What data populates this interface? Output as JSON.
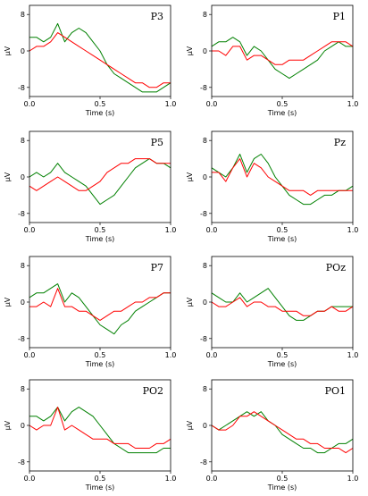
{
  "chart_data": [
    {
      "type": "line",
      "title": "P3",
      "xlabel": "Time (s)",
      "ylabel": "µV",
      "xlim": [
        0,
        1
      ],
      "ylim": [
        -10,
        10
      ],
      "xticks": [
        "0.0",
        "0.5",
        "1.0"
      ],
      "yticks": [
        "8",
        "0",
        "-8"
      ],
      "series": [
        {
          "color": "#008000",
          "x": [
            0,
            0.05,
            0.1,
            0.15,
            0.2,
            0.25,
            0.3,
            0.35,
            0.4,
            0.45,
            0.5,
            0.55,
            0.6,
            0.65,
            0.7,
            0.75,
            0.8,
            0.85,
            0.9,
            0.95,
            1.0
          ],
          "values": [
            3,
            3,
            2,
            3,
            6,
            2,
            4,
            5,
            4,
            2,
            0,
            -3,
            -5,
            -6,
            -7,
            -8,
            -9,
            -9,
            -9,
            -8,
            -7
          ]
        },
        {
          "color": "#ff0000",
          "x": [
            0,
            0.05,
            0.1,
            0.15,
            0.2,
            0.25,
            0.3,
            0.35,
            0.4,
            0.45,
            0.5,
            0.55,
            0.6,
            0.65,
            0.7,
            0.75,
            0.8,
            0.85,
            0.9,
            0.95,
            1.0
          ],
          "values": [
            0,
            1,
            1,
            2,
            4,
            3,
            2,
            1,
            0,
            -1,
            -2,
            -3,
            -4,
            -5,
            -6,
            -7,
            -7,
            -8,
            -8,
            -7,
            -7
          ]
        }
      ]
    },
    {
      "type": "line",
      "title": "P1",
      "xlabel": "Time (s)",
      "ylabel": "µV",
      "xlim": [
        0,
        1
      ],
      "ylim": [
        -10,
        10
      ],
      "xticks": [
        "0.0",
        "0.5",
        "1.0"
      ],
      "yticks": [
        "8",
        "0",
        "-8"
      ],
      "series": [
        {
          "color": "#008000",
          "x": [
            0,
            0.05,
            0.1,
            0.15,
            0.2,
            0.25,
            0.3,
            0.35,
            0.4,
            0.45,
            0.5,
            0.55,
            0.6,
            0.65,
            0.7,
            0.75,
            0.8,
            0.85,
            0.9,
            0.95,
            1.0
          ],
          "values": [
            1,
            2,
            2,
            3,
            2,
            -1,
            1,
            0,
            -2,
            -4,
            -5,
            -6,
            -5,
            -4,
            -3,
            -2,
            0,
            1,
            2,
            1,
            1
          ]
        },
        {
          "color": "#ff0000",
          "x": [
            0,
            0.05,
            0.1,
            0.15,
            0.2,
            0.25,
            0.3,
            0.35,
            0.4,
            0.45,
            0.5,
            0.55,
            0.6,
            0.65,
            0.7,
            0.75,
            0.8,
            0.85,
            0.9,
            0.95,
            1.0
          ],
          "values": [
            0,
            0,
            -1,
            1,
            1,
            -2,
            -1,
            -1,
            -2,
            -3,
            -3,
            -2,
            -2,
            -2,
            -1,
            0,
            1,
            2,
            2,
            2,
            1
          ]
        }
      ]
    },
    {
      "type": "line",
      "title": "P5",
      "xlabel": "Time (s)",
      "ylabel": "µV",
      "xlim": [
        0,
        1
      ],
      "ylim": [
        -10,
        10
      ],
      "xticks": [
        "0.0",
        "0.5",
        "1.0"
      ],
      "yticks": [
        "8",
        "0",
        "-8"
      ],
      "series": [
        {
          "color": "#008000",
          "x": [
            0,
            0.05,
            0.1,
            0.15,
            0.2,
            0.25,
            0.3,
            0.35,
            0.4,
            0.45,
            0.5,
            0.55,
            0.6,
            0.65,
            0.7,
            0.75,
            0.8,
            0.85,
            0.9,
            0.95,
            1.0
          ],
          "values": [
            0,
            1,
            0,
            1,
            3,
            1,
            0,
            -1,
            -2,
            -4,
            -6,
            -5,
            -4,
            -2,
            0,
            2,
            3,
            4,
            3,
            3,
            2
          ]
        },
        {
          "color": "#ff0000",
          "x": [
            0,
            0.05,
            0.1,
            0.15,
            0.2,
            0.25,
            0.3,
            0.35,
            0.4,
            0.45,
            0.5,
            0.55,
            0.6,
            0.65,
            0.7,
            0.75,
            0.8,
            0.85,
            0.9,
            0.95,
            1.0
          ],
          "values": [
            -2,
            -3,
            -2,
            -1,
            0,
            -1,
            -2,
            -3,
            -3,
            -2,
            -1,
            1,
            2,
            3,
            3,
            4,
            4,
            4,
            3,
            3,
            3
          ]
        }
      ]
    },
    {
      "type": "line",
      "title": "Pz",
      "xlabel": "Time (s)",
      "ylabel": "µV",
      "xlim": [
        0,
        1
      ],
      "ylim": [
        -10,
        10
      ],
      "xticks": [
        "0.0",
        "0.5",
        "1.0"
      ],
      "yticks": [
        "8",
        "0",
        "-8"
      ],
      "series": [
        {
          "color": "#008000",
          "x": [
            0,
            0.05,
            0.1,
            0.15,
            0.2,
            0.25,
            0.3,
            0.35,
            0.4,
            0.45,
            0.5,
            0.55,
            0.6,
            0.65,
            0.7,
            0.75,
            0.8,
            0.85,
            0.9,
            0.95,
            1.0
          ],
          "values": [
            2,
            1,
            0,
            2,
            5,
            1,
            4,
            5,
            3,
            0,
            -2,
            -4,
            -5,
            -6,
            -6,
            -5,
            -4,
            -4,
            -3,
            -3,
            -2
          ]
        },
        {
          "color": "#ff0000",
          "x": [
            0,
            0.05,
            0.1,
            0.15,
            0.2,
            0.25,
            0.3,
            0.35,
            0.4,
            0.45,
            0.5,
            0.55,
            0.6,
            0.65,
            0.7,
            0.75,
            0.8,
            0.85,
            0.9,
            0.95,
            1.0
          ],
          "values": [
            1,
            1,
            -1,
            2,
            4,
            0,
            3,
            2,
            0,
            -1,
            -2,
            -3,
            -3,
            -3,
            -4,
            -3,
            -3,
            -3,
            -3,
            -3,
            -3
          ]
        }
      ]
    },
    {
      "type": "line",
      "title": "P7",
      "xlabel": "Time (s)",
      "ylabel": "µV",
      "xlim": [
        0,
        1
      ],
      "ylim": [
        -10,
        10
      ],
      "xticks": [
        "0.0",
        "0.5",
        "1.0"
      ],
      "yticks": [
        "8",
        "0",
        "-8"
      ],
      "series": [
        {
          "color": "#008000",
          "x": [
            0,
            0.05,
            0.1,
            0.15,
            0.2,
            0.25,
            0.3,
            0.35,
            0.4,
            0.45,
            0.5,
            0.55,
            0.6,
            0.65,
            0.7,
            0.75,
            0.8,
            0.85,
            0.9,
            0.95,
            1.0
          ],
          "values": [
            1,
            2,
            2,
            3,
            4,
            0,
            2,
            1,
            -1,
            -3,
            -5,
            -6,
            -7,
            -5,
            -4,
            -2,
            -1,
            0,
            1,
            2,
            2
          ]
        },
        {
          "color": "#ff0000",
          "x": [
            0,
            0.05,
            0.1,
            0.15,
            0.2,
            0.25,
            0.3,
            0.35,
            0.4,
            0.45,
            0.5,
            0.55,
            0.6,
            0.65,
            0.7,
            0.75,
            0.8,
            0.85,
            0.9,
            0.95,
            1.0
          ],
          "values": [
            -1,
            -1,
            0,
            -1,
            3,
            -1,
            -1,
            -2,
            -2,
            -3,
            -4,
            -3,
            -2,
            -2,
            -1,
            0,
            0,
            1,
            1,
            2,
            2
          ]
        }
      ]
    },
    {
      "type": "line",
      "title": "POz",
      "xlabel": "Time (s)",
      "ylabel": "µV",
      "xlim": [
        0,
        1
      ],
      "ylim": [
        -10,
        10
      ],
      "xticks": [
        "0.0",
        "0.5",
        "1.0"
      ],
      "yticks": [
        "8",
        "0",
        "-8"
      ],
      "series": [
        {
          "color": "#008000",
          "x": [
            0,
            0.05,
            0.1,
            0.15,
            0.2,
            0.25,
            0.3,
            0.35,
            0.4,
            0.45,
            0.5,
            0.55,
            0.6,
            0.65,
            0.7,
            0.75,
            0.8,
            0.85,
            0.9,
            0.95,
            1.0
          ],
          "values": [
            2,
            1,
            0,
            0,
            2,
            0,
            1,
            2,
            3,
            1,
            -1,
            -3,
            -4,
            -4,
            -3,
            -2,
            -2,
            -1,
            -1,
            -1,
            -1
          ]
        },
        {
          "color": "#ff0000",
          "x": [
            0,
            0.05,
            0.1,
            0.15,
            0.2,
            0.25,
            0.3,
            0.35,
            0.4,
            0.45,
            0.5,
            0.55,
            0.6,
            0.65,
            0.7,
            0.75,
            0.8,
            0.85,
            0.9,
            0.95,
            1.0
          ],
          "values": [
            0,
            -1,
            -1,
            0,
            1,
            -1,
            0,
            0,
            -1,
            -1,
            -2,
            -2,
            -2,
            -3,
            -3,
            -2,
            -2,
            -1,
            -2,
            -2,
            -1
          ]
        }
      ]
    },
    {
      "type": "line",
      "title": "PO2",
      "xlabel": "Time (s)",
      "ylabel": "µV",
      "xlim": [
        0,
        1
      ],
      "ylim": [
        -10,
        10
      ],
      "xticks": [
        "0.0",
        "0.5",
        "1.0"
      ],
      "yticks": [
        "8",
        "0",
        "-8"
      ],
      "series": [
        {
          "color": "#008000",
          "x": [
            0,
            0.05,
            0.1,
            0.15,
            0.2,
            0.25,
            0.3,
            0.35,
            0.4,
            0.45,
            0.5,
            0.55,
            0.6,
            0.65,
            0.7,
            0.75,
            0.8,
            0.85,
            0.9,
            0.95,
            1.0
          ],
          "values": [
            2,
            2,
            1,
            2,
            4,
            1,
            3,
            4,
            3,
            2,
            0,
            -2,
            -4,
            -5,
            -6,
            -6,
            -6,
            -6,
            -6,
            -5,
            -5
          ]
        },
        {
          "color": "#ff0000",
          "x": [
            0,
            0.05,
            0.1,
            0.15,
            0.2,
            0.25,
            0.3,
            0.35,
            0.4,
            0.45,
            0.5,
            0.55,
            0.6,
            0.65,
            0.7,
            0.75,
            0.8,
            0.85,
            0.9,
            0.95,
            1.0
          ],
          "values": [
            0,
            -1,
            0,
            0,
            4,
            -1,
            0,
            -1,
            -2,
            -3,
            -3,
            -3,
            -4,
            -4,
            -4,
            -5,
            -5,
            -5,
            -4,
            -4,
            -3
          ]
        }
      ]
    },
    {
      "type": "line",
      "title": "PO1",
      "xlabel": "Time (s)",
      "ylabel": "µV",
      "xlim": [
        0,
        1
      ],
      "ylim": [
        -10,
        10
      ],
      "xticks": [
        "0.0",
        "0.5",
        "1.0"
      ],
      "yticks": [
        "8",
        "0",
        "-8"
      ],
      "series": [
        {
          "color": "#008000",
          "x": [
            0,
            0.05,
            0.1,
            0.15,
            0.2,
            0.25,
            0.3,
            0.35,
            0.4,
            0.45,
            0.5,
            0.55,
            0.6,
            0.65,
            0.7,
            0.75,
            0.8,
            0.85,
            0.9,
            0.95,
            1.0
          ],
          "values": [
            0,
            -1,
            0,
            1,
            2,
            3,
            2,
            3,
            1,
            0,
            -2,
            -3,
            -4,
            -5,
            -5,
            -6,
            -6,
            -5,
            -4,
            -4,
            -3
          ]
        },
        {
          "color": "#ff0000",
          "x": [
            0,
            0.05,
            0.1,
            0.15,
            0.2,
            0.25,
            0.3,
            0.35,
            0.4,
            0.45,
            0.5,
            0.55,
            0.6,
            0.65,
            0.7,
            0.75,
            0.8,
            0.85,
            0.9,
            0.95,
            1.0
          ],
          "values": [
            0,
            -1,
            -1,
            0,
            2,
            2,
            3,
            2,
            1,
            0,
            -1,
            -2,
            -3,
            -3,
            -4,
            -4,
            -5,
            -5,
            -5,
            -6,
            -5
          ]
        }
      ]
    }
  ]
}
